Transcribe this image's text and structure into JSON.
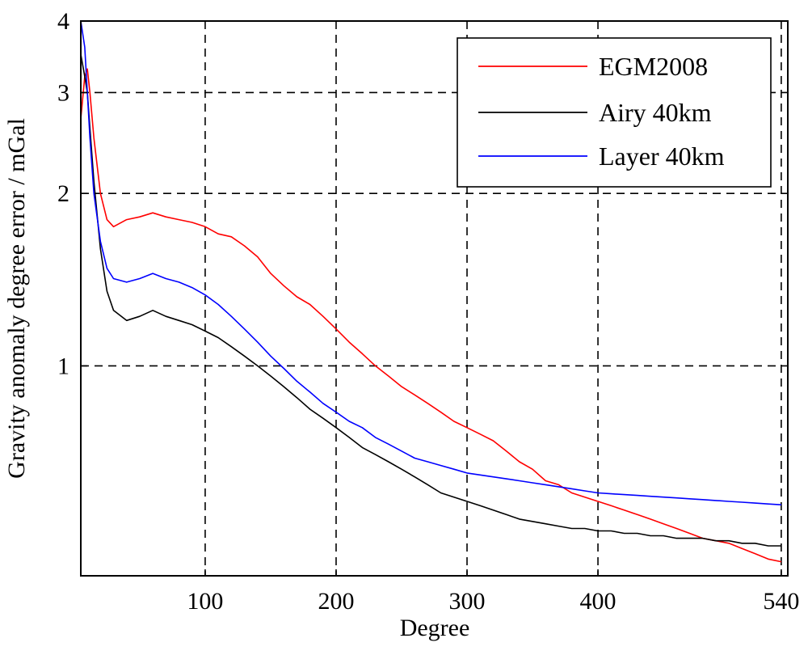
{
  "chart_data": {
    "type": "line",
    "title": "",
    "xlabel": "Degree",
    "ylabel": "Gravity anomaly degree error / mGal",
    "x_scale": "linear",
    "y_scale": "log",
    "xlim": [
      5,
      545
    ],
    "ylim": [
      0.43,
      4
    ],
    "x_ticks": [
      100,
      200,
      300,
      400,
      540
    ],
    "y_ticks": [
      1,
      2,
      3,
      4
    ],
    "grid": true,
    "legend_position": "top-right",
    "series": [
      {
        "name": "EGM2008",
        "color": "#ff0000",
        "x": [
          5,
          8,
          10,
          12,
          15,
          20,
          25,
          30,
          40,
          50,
          60,
          70,
          80,
          90,
          100,
          110,
          120,
          130,
          140,
          150,
          160,
          170,
          180,
          190,
          200,
          210,
          220,
          230,
          240,
          250,
          260,
          270,
          280,
          290,
          300,
          310,
          320,
          330,
          340,
          350,
          360,
          370,
          380,
          390,
          400,
          410,
          420,
          430,
          440,
          450,
          460,
          470,
          480,
          490,
          500,
          510,
          520,
          530,
          540
        ],
        "y": [
          2.7,
          3.2,
          3.3,
          3.0,
          2.5,
          2.0,
          1.8,
          1.75,
          1.8,
          1.82,
          1.85,
          1.82,
          1.8,
          1.78,
          1.75,
          1.7,
          1.68,
          1.62,
          1.55,
          1.45,
          1.38,
          1.32,
          1.28,
          1.22,
          1.16,
          1.1,
          1.05,
          1.0,
          0.96,
          0.92,
          0.89,
          0.86,
          0.83,
          0.8,
          0.78,
          0.76,
          0.74,
          0.71,
          0.68,
          0.66,
          0.63,
          0.62,
          0.6,
          0.59,
          0.58,
          0.57,
          0.56,
          0.55,
          0.54,
          0.53,
          0.52,
          0.51,
          0.5,
          0.495,
          0.49,
          0.48,
          0.47,
          0.46,
          0.455
        ]
      },
      {
        "name": "Airy 40km",
        "color": "#000000",
        "x": [
          5,
          8,
          10,
          12,
          15,
          20,
          25,
          30,
          40,
          50,
          60,
          70,
          80,
          90,
          100,
          110,
          120,
          130,
          140,
          150,
          160,
          170,
          180,
          190,
          200,
          210,
          220,
          230,
          240,
          250,
          260,
          270,
          280,
          290,
          300,
          310,
          320,
          330,
          340,
          350,
          360,
          370,
          380,
          390,
          400,
          410,
          420,
          430,
          440,
          450,
          460,
          470,
          480,
          490,
          500,
          510,
          520,
          530,
          540
        ],
        "y": [
          3.5,
          3.2,
          3.0,
          2.6,
          2.1,
          1.6,
          1.35,
          1.25,
          1.2,
          1.22,
          1.25,
          1.22,
          1.2,
          1.18,
          1.15,
          1.12,
          1.08,
          1.04,
          1.0,
          0.96,
          0.92,
          0.88,
          0.84,
          0.81,
          0.78,
          0.75,
          0.72,
          0.7,
          0.68,
          0.66,
          0.64,
          0.62,
          0.6,
          0.59,
          0.58,
          0.57,
          0.56,
          0.55,
          0.54,
          0.535,
          0.53,
          0.525,
          0.52,
          0.52,
          0.515,
          0.515,
          0.51,
          0.51,
          0.505,
          0.505,
          0.5,
          0.5,
          0.5,
          0.495,
          0.495,
          0.49,
          0.49,
          0.485,
          0.485
        ]
      },
      {
        "name": "Layer 40km",
        "color": "#0000ff",
        "x": [
          5,
          8,
          10,
          12,
          15,
          20,
          25,
          30,
          40,
          50,
          60,
          70,
          80,
          90,
          100,
          110,
          120,
          130,
          140,
          150,
          160,
          170,
          180,
          190,
          200,
          210,
          220,
          230,
          240,
          250,
          260,
          270,
          280,
          290,
          300,
          310,
          320,
          330,
          340,
          350,
          360,
          370,
          380,
          390,
          400,
          410,
          420,
          430,
          440,
          450,
          460,
          470,
          480,
          490,
          500,
          510,
          520,
          530,
          540
        ],
        "y": [
          4.0,
          3.6,
          3.0,
          2.5,
          2.0,
          1.65,
          1.48,
          1.42,
          1.4,
          1.42,
          1.45,
          1.42,
          1.4,
          1.37,
          1.33,
          1.28,
          1.22,
          1.16,
          1.1,
          1.04,
          0.99,
          0.94,
          0.9,
          0.86,
          0.83,
          0.8,
          0.78,
          0.75,
          0.73,
          0.71,
          0.69,
          0.68,
          0.67,
          0.66,
          0.65,
          0.645,
          0.64,
          0.635,
          0.63,
          0.625,
          0.62,
          0.615,
          0.61,
          0.605,
          0.6,
          0.598,
          0.596,
          0.594,
          0.592,
          0.59,
          0.588,
          0.586,
          0.584,
          0.582,
          0.58,
          0.578,
          0.576,
          0.574,
          0.572
        ]
      }
    ]
  }
}
